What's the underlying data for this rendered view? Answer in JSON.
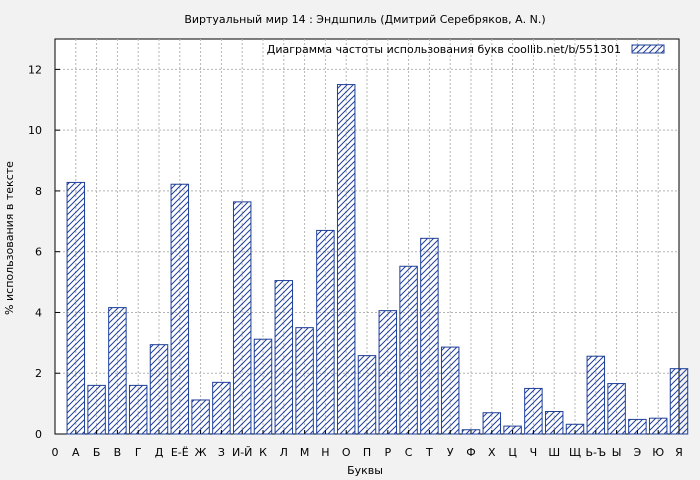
{
  "chart_data": {
    "type": "bar",
    "title": "Виртуальный мир 14 : Эндшпиль (Дмитрий Серебряков, А. N.)",
    "xlabel": "Буквы",
    "ylabel": "% использования в тексте",
    "legend_label": "Диаграмма частоты использования букв  coollib.net/b/551301",
    "legend_position": "top-right",
    "ylim": [
      0,
      13
    ],
    "yticks": [
      0,
      2,
      4,
      6,
      8,
      10,
      12
    ],
    "categories": [
      "0",
      "А",
      "Б",
      "В",
      "Г",
      "Д",
      "Е-Ё",
      "Ж",
      "З",
      "И-Й",
      "К",
      "Л",
      "М",
      "Н",
      "О",
      "П",
      "Р",
      "С",
      "Т",
      "У",
      "Ф",
      "Х",
      "Ц",
      "Ч",
      "Ш",
      "Щ",
      "Ь-Ъ",
      "Ы",
      "Э",
      "Ю",
      "Я"
    ],
    "values": [
      0,
      8.28,
      1.6,
      4.16,
      1.6,
      2.94,
      8.22,
      1.12,
      1.7,
      7.64,
      3.12,
      5.05,
      3.5,
      6.7,
      11.5,
      2.58,
      4.06,
      5.52,
      6.44,
      2.86,
      0.14,
      0.7,
      0.26,
      1.5,
      0.74,
      0.32,
      2.56,
      1.66,
      0.48,
      0.52,
      2.15
    ],
    "grid": true,
    "bar_fill": "hatched",
    "colors": {
      "bar_stroke": "#1f3f9a",
      "background": "#f2f2f2",
      "plot_background": "#ffffff",
      "grid": "#b4b4b4"
    }
  }
}
